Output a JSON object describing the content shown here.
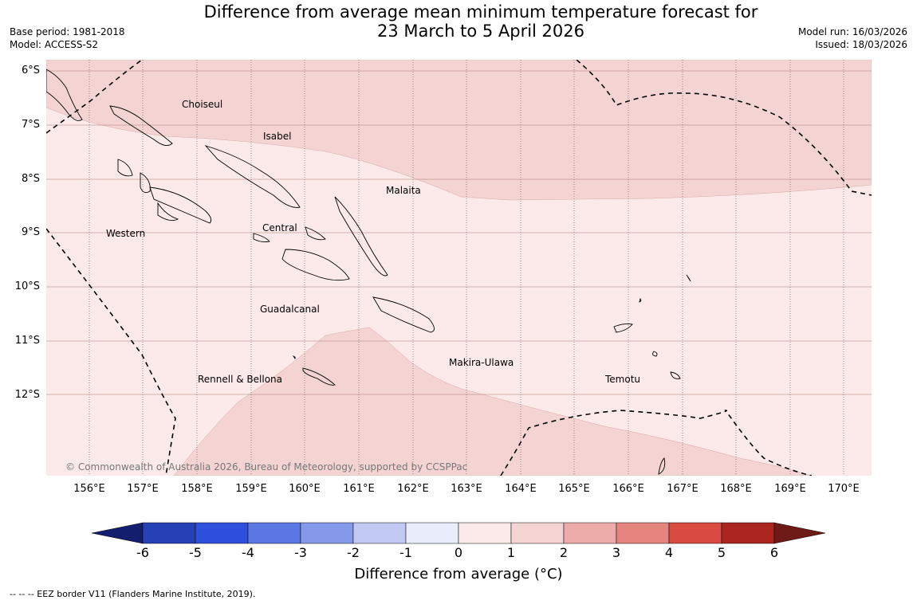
{
  "title": {
    "line1": "Difference from average mean minimum temperature forecast for",
    "line2": "23 March to 5 April 2026"
  },
  "meta": {
    "base_period": "Base period: 1981-2018",
    "model": "Model: ACCESS-S2",
    "model_run": "Model run: 16/03/2026",
    "issued": "Issued: 18/03/2026"
  },
  "axes": {
    "lat_labels": [
      "6°S",
      "7°S",
      "8°S",
      "9°S",
      "10°S",
      "11°S",
      "12°S"
    ],
    "lon_labels": [
      "156°E",
      "157°E",
      "158°E",
      "159°E",
      "160°E",
      "161°E",
      "162°E",
      "163°E",
      "164°E",
      "165°E",
      "166°E",
      "167°E",
      "168°E",
      "169°E",
      "170°E"
    ]
  },
  "provinces": [
    "Choiseul",
    "Isabel",
    "Malaita",
    "Western",
    "Central",
    "Guadalcanal",
    "Makira-Ulawa",
    "Rennell & Bellona",
    "Temotu"
  ],
  "copyright": "© Commonwealth of Australia 2026, Bureau of Meteorology, supported by CCSPPac",
  "colorbar": {
    "ticks": [
      "-6",
      "-5",
      "-4",
      "-3",
      "-2",
      "-1",
      "0",
      "1",
      "2",
      "3",
      "4",
      "5",
      "6"
    ],
    "colors": [
      "#131f6e",
      "#2640b5",
      "#2f4fdd",
      "#5b77e4",
      "#8599ea",
      "#c1c9f3",
      "#e9edfb",
      "#fbeae9",
      "#f4d4d3",
      "#edaba9",
      "#e6857f",
      "#d94a40",
      "#ab2620",
      "#6e1a17"
    ],
    "label": "Difference from average ($^\\circ$C)",
    "label_display": "Difference from average (°C)"
  },
  "footnote": "--  --  -- EEZ border V11 (Flanders Marine Institute, 2019).",
  "map_fill": {
    "anomaly_0_1": "#fbeae9",
    "anomaly_1_2": "#f4d4d3"
  }
}
